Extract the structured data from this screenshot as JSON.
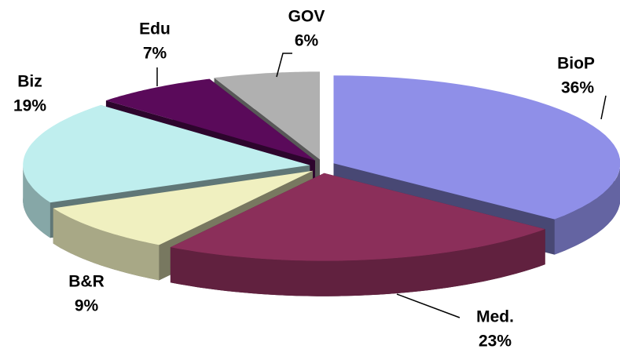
{
  "chart_data": {
    "type": "pie",
    "three_d": true,
    "categories": [
      "BioP",
      "Med.",
      "B&R",
      "Biz",
      "Edu",
      "GOV"
    ],
    "values": [
      36,
      23,
      9,
      19,
      7,
      6
    ],
    "value_labels": [
      "36%",
      "23%",
      "9%",
      "19%",
      "7%",
      "6%"
    ],
    "colors": [
      "#8f8fe8",
      "#8b2f5a",
      "#f0f0c0",
      "#bfeeee",
      "#5a0a5a",
      "#b0b0b0"
    ]
  }
}
